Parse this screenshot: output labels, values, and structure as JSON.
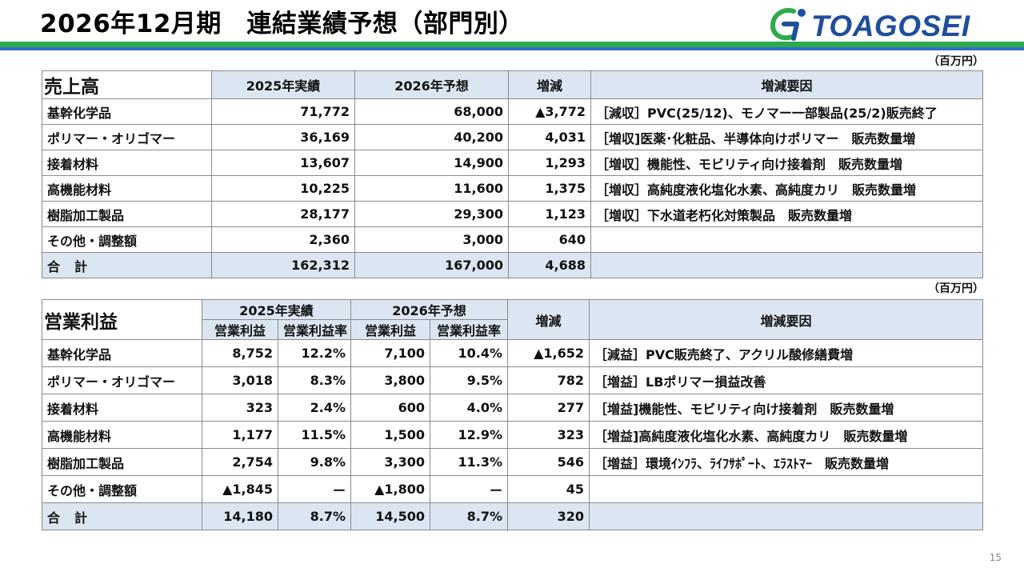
{
  "title": "2026年12月期　連結業績予想（部門別）",
  "logo_text": "TOAGOSEI",
  "colors": {
    "accent_green": "#2FAA4B",
    "accent_blue": "#2E6FC4",
    "header_fill": "#DCE6F2"
  },
  "sales": {
    "unit": "（百万円）",
    "section_title": "売上高",
    "headers": [
      "2025年実績",
      "2026年予想",
      "増減",
      "増減要因"
    ],
    "rows": [
      {
        "segment": "基幹化学品",
        "actual": "71,772",
        "forecast": "68,000",
        "change": "▲3,772",
        "reason": "［減収］PVC(25/12)、モノマー一部製品(25/2)販売終了"
      },
      {
        "segment": "ポリマー・オリゴマー",
        "actual": "36,169",
        "forecast": "40,200",
        "change": "4,031",
        "reason": "［増収]医薬･化粧品、半導体向けポリマー　販売数量増"
      },
      {
        "segment": "接着材料",
        "actual": "13,607",
        "forecast": "14,900",
        "change": "1,293",
        "reason": "［増収］機能性、モビリティ向け接着剤　販売数量増"
      },
      {
        "segment": "高機能材料",
        "actual": "10,225",
        "forecast": "11,600",
        "change": "1,375",
        "reason": "［増収］高純度液化塩化水素、高純度カリ　販売数量増"
      },
      {
        "segment": "樹脂加工製品",
        "actual": "28,177",
        "forecast": "29,300",
        "change": "1,123",
        "reason": "［増収］下水道老朽化対策製品　販売数量増"
      },
      {
        "segment": "その他・調整額",
        "actual": "2,360",
        "forecast": "3,000",
        "change": "640",
        "reason": ""
      }
    ],
    "total": {
      "label": "合計",
      "actual": "162,312",
      "forecast": "167,000",
      "change": "4,688",
      "reason": ""
    }
  },
  "profit": {
    "unit": "（百万円）",
    "section_title": "営業利益",
    "group_headers": [
      "2025年実績",
      "2026年予想",
      "増減",
      "増減要因"
    ],
    "sub_headers": [
      "営業利益",
      "営業利益率",
      "営業利益",
      "営業利益率"
    ],
    "rows": [
      {
        "segment": "基幹化学品",
        "actual": "8,752",
        "actual_rate": "12.2%",
        "forecast": "7,100",
        "forecast_rate": "10.4%",
        "change": "▲1,652",
        "reason": "［減益］PVC販売終了、アクリル酸修繕費増"
      },
      {
        "segment": "ポリマー・オリゴマー",
        "actual": "3,018",
        "actual_rate": "8.3%",
        "forecast": "3,800",
        "forecast_rate": "9.5%",
        "change": "782",
        "reason": "［増益］LBポリマー損益改善"
      },
      {
        "segment": "接着材料",
        "actual": "323",
        "actual_rate": "2.4%",
        "forecast": "600",
        "forecast_rate": "4.0%",
        "change": "277",
        "reason": "［増益]機能性、モビリティ向け接着剤　販売数量増"
      },
      {
        "segment": "高機能材料",
        "actual": "1,177",
        "actual_rate": "11.5%",
        "forecast": "1,500",
        "forecast_rate": "12.9%",
        "change": "323",
        "reason": "［増益]高純度液化塩化水素、高純度カリ　販売数量増"
      },
      {
        "segment": "樹脂加工製品",
        "actual": "2,754",
        "actual_rate": "9.8%",
        "forecast": "3,300",
        "forecast_rate": "11.3%",
        "change": "546",
        "reason": "［増益］環境ｲﾝﾌﾗ、ﾗｲﾌｻﾎﾟｰﾄ、ｴﾗｽﾄﾏｰ　販売数量増"
      },
      {
        "segment": "その他・調整額",
        "actual": "▲1,845",
        "actual_rate": "ー",
        "forecast": "▲1,800",
        "forecast_rate": "ー",
        "change": "45",
        "reason": ""
      }
    ],
    "total": {
      "label": "合計",
      "actual": "14,180",
      "actual_rate": "8.7%",
      "forecast": "14,500",
      "forecast_rate": "8.7%",
      "change": "320",
      "reason": ""
    }
  },
  "page_number": "15"
}
